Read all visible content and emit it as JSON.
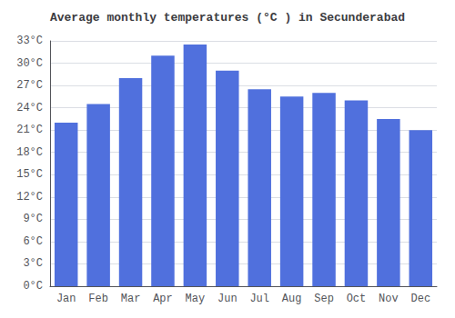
{
  "chart_data": {
    "type": "bar",
    "title": "Average monthly temperatures (°C ) in Secunderabad",
    "categories": [
      "Jan",
      "Feb",
      "Mar",
      "Apr",
      "May",
      "Jun",
      "Jul",
      "Aug",
      "Sep",
      "Oct",
      "Nov",
      "Dec"
    ],
    "values": [
      22.0,
      24.5,
      28.0,
      31.0,
      32.5,
      29.0,
      26.5,
      25.5,
      26.0,
      25.0,
      22.5,
      21.0
    ],
    "ylim": [
      0,
      33
    ],
    "yticks": [
      {
        "value": 0,
        "label": "0°C"
      },
      {
        "value": 3,
        "label": "3°C"
      },
      {
        "value": 6,
        "label": "6°C"
      },
      {
        "value": 9,
        "label": "9°C"
      },
      {
        "value": 12,
        "label": "12°C"
      },
      {
        "value": 15,
        "label": "15°C"
      },
      {
        "value": 18,
        "label": "18°C"
      },
      {
        "value": 21,
        "label": "21°C"
      },
      {
        "value": 24,
        "label": "24°C"
      },
      {
        "value": 27,
        "label": "27°C"
      },
      {
        "value": 30,
        "label": "30°C"
      },
      {
        "value": 33,
        "label": "33°C"
      }
    ],
    "grid": true
  }
}
